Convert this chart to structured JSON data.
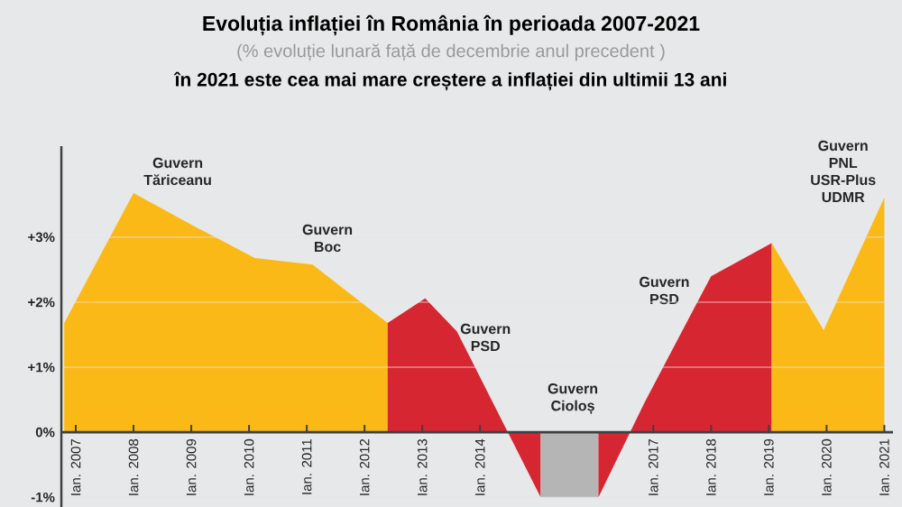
{
  "chart_data": {
    "type": "area",
    "title": "Evoluția inflației în România în perioada 2007-2021",
    "subtitle": "(% evoluție lunară față de decembrie anul precedent )",
    "annotations": [
      "în 2021 este cea mai mare creștere a inflației din ultimii 13 ani",
      "Guvern Tăriceanu",
      "Guvern Boc",
      "Guvern PSD",
      "Guvern Cioloș",
      "Guvern PSD",
      "Guvern PNL USR-Plus UDMR"
    ],
    "series": [
      {
        "color": "#fbb917",
        "x": [
          2006.8,
          2008.0,
          2009.05,
          2010.1,
          2011.1,
          2012.4
        ],
        "values": [
          1.68,
          3.68,
          3.17,
          2.68,
          2.58,
          1.68
        ]
      },
      {
        "color": "#d62631",
        "x": [
          2012.4,
          2013.05,
          2013.6,
          2015.05
        ],
        "values": [
          1.68,
          2.06,
          1.55,
          -1.0
        ]
      },
      {
        "color": "#b5b5b5",
        "x": [
          2015.05,
          2016.05
        ],
        "values": [
          -1.0,
          -1.0
        ]
      },
      {
        "color": "#d62631",
        "x": [
          2016.05,
          2016.85,
          2018.0,
          2019.05
        ],
        "values": [
          -1.0,
          0.46,
          2.4,
          2.91
        ]
      },
      {
        "color": "#fbb917",
        "x": [
          2019.05,
          2019.95,
          2021.0
        ],
        "values": [
          2.91,
          1.57,
          3.61
        ]
      }
    ],
    "xlim": [
      2006.75,
      2021.15
    ],
    "ylim": [
      -1.15,
      4.4
    ],
    "xticks": [
      {
        "value": 2007,
        "label": "Ian. 2007"
      },
      {
        "value": 2008,
        "label": "Ian. 2008"
      },
      {
        "value": 2009,
        "label": "Ian. 2009"
      },
      {
        "value": 2010,
        "label": "Ian. 2010"
      },
      {
        "value": 2011,
        "label": "Ian. 2011"
      },
      {
        "value": 2012,
        "label": "Ian. 2012"
      },
      {
        "value": 2013,
        "label": "Ian. 2013"
      },
      {
        "value": 2014,
        "label": "Ian. 2014"
      },
      {
        "value": 2017,
        "label": "Ian. 2017"
      },
      {
        "value": 2018,
        "label": "Ian. 2018"
      },
      {
        "value": 2019,
        "label": "Ian. 2019"
      },
      {
        "value": 2020,
        "label": "Ian. 2020"
      },
      {
        "value": 2021,
        "label": "Ian. 2021"
      }
    ],
    "yticks": [
      {
        "value": -1,
        "label": "-1%"
      },
      {
        "value": 0,
        "label": "0%"
      },
      {
        "value": 1,
        "label": "+1%"
      },
      {
        "value": 2,
        "label": "+2%"
      },
      {
        "value": 3,
        "label": "+3%"
      }
    ],
    "grid": "y"
  }
}
